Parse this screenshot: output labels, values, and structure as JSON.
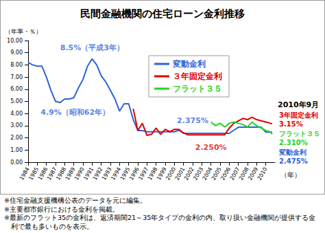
{
  "chart_data": {
    "type": "line",
    "title": "民間金融機関の住宅ローン金利推移",
    "ylabel": "（年率・％）",
    "xlabel": "（年）",
    "x": [
      1984,
      1984.5,
      1985,
      1985.5,
      1986,
      1986.5,
      1987,
      1987.5,
      1988,
      1988.5,
      1989,
      1989.5,
      1990,
      1990.5,
      1991,
      1991.5,
      1992,
      1992.5,
      1993,
      1993.5,
      1994,
      1994.5,
      1995,
      1995.5,
      1996,
      1996.5,
      1997,
      1997.5,
      1998,
      1998.5,
      1999,
      1999.5,
      2000,
      2000.5,
      2001,
      2001.5,
      2002,
      2002.5,
      2003,
      2003.5,
      2004,
      2004.5,
      2005,
      2005.5,
      2006,
      2006.5,
      2007,
      2007.5,
      2008,
      2008.5,
      2009,
      2009.5,
      2010,
      2010.5,
      2010.7
    ],
    "series": [
      {
        "name": "変動金利",
        "color": "#2e62d9",
        "values": [
          8.2,
          8.0,
          7.9,
          7.9,
          7.0,
          5.9,
          5.0,
          4.9,
          5.2,
          5.2,
          5.3,
          6.1,
          6.8,
          7.9,
          8.5,
          8.0,
          7.1,
          6.6,
          5.9,
          5.2,
          4.2,
          4.8,
          4.8,
          3.5,
          2.6,
          2.6,
          2.5,
          2.5,
          2.5,
          2.5,
          2.5,
          2.5,
          2.5,
          2.625,
          2.375,
          2.375,
          2.375,
          2.375,
          2.375,
          2.375,
          2.375,
          2.375,
          2.375,
          2.375,
          2.375,
          2.625,
          2.875,
          2.875,
          2.875,
          2.875,
          2.875,
          2.875,
          2.475,
          2.475,
          2.475
        ]
      },
      {
        "name": "３年固定金利",
        "color": "#e00000",
        "values": [
          null,
          null,
          null,
          null,
          null,
          null,
          null,
          null,
          null,
          null,
          null,
          null,
          null,
          null,
          null,
          null,
          null,
          null,
          null,
          null,
          null,
          null,
          null,
          4.4,
          2.6,
          3.2,
          2.2,
          2.3,
          2.8,
          2.3,
          2.7,
          2.5,
          2.7,
          2.7,
          2.4,
          2.25,
          2.25,
          2.25,
          2.25,
          2.25,
          2.25,
          2.25,
          2.25,
          2.25,
          2.8,
          3.2,
          3.4,
          3.6,
          3.5,
          3.7,
          3.5,
          3.4,
          3.3,
          3.2,
          3.15
        ]
      },
      {
        "name": "フラット３５",
        "color": "#22d422",
        "values": [
          null,
          null,
          null,
          null,
          null,
          null,
          null,
          null,
          null,
          null,
          null,
          null,
          null,
          null,
          null,
          null,
          null,
          null,
          null,
          null,
          null,
          null,
          null,
          null,
          null,
          null,
          null,
          null,
          null,
          null,
          null,
          null,
          null,
          null,
          null,
          null,
          null,
          null,
          null,
          null,
          3.3,
          3.0,
          3.2,
          2.9,
          3.2,
          3.3,
          3.2,
          3.1,
          2.9,
          3.3,
          3.0,
          2.8,
          2.6,
          2.5,
          2.31
        ]
      }
    ],
    "xlim": [
      1984,
      2011
    ],
    "xticks": [
      1984,
      1985,
      1986,
      1987,
      1988,
      1989,
      1990,
      1991,
      1992,
      1993,
      1994,
      1995,
      1996,
      1997,
      1998,
      1999,
      2000,
      2001,
      2002,
      2003,
      2004,
      2005,
      2006,
      2007,
      2008,
      2009,
      2010
    ],
    "ylim": [
      0,
      10
    ],
    "yticks": [
      {
        "value": 0,
        "label": "0.00"
      },
      {
        "value": 1,
        "label": "1.00"
      },
      {
        "value": 2,
        "label": "2.00"
      },
      {
        "value": 3,
        "label": "3.00"
      },
      {
        "value": 4,
        "label": "4.00"
      },
      {
        "value": 5,
        "label": "5.00"
      },
      {
        "value": 6,
        "label": "6.00"
      },
      {
        "value": 7,
        "label": "7.00"
      },
      {
        "value": 8,
        "label": "8.00"
      },
      {
        "value": 9,
        "label": "9.00"
      },
      {
        "value": 10,
        "label": "10.00"
      }
    ],
    "grid": false,
    "legend": "top",
    "annotations": [
      {
        "text": "8.5%（平成3年）",
        "x": 1991,
        "y": 8.5,
        "color": "#2e62d9"
      },
      {
        "text": "4.9%（昭和62年）",
        "x": 1987.5,
        "y": 4.9,
        "color": "#2e62d9"
      },
      {
        "text": "2.375%",
        "x": 2002,
        "y": 2.375,
        "color": "#2e62d9"
      },
      {
        "text": "2.250%",
        "x": 2004,
        "y": 2.25,
        "color": "#e00000"
      }
    ],
    "latest": {
      "title": "2010年9月",
      "items": [
        {
          "name": "3年固定金利",
          "label": "3.15%",
          "color": "#e00000"
        },
        {
          "name": "フラット３５",
          "label": "2.310%",
          "color": "#22d422"
        },
        {
          "name": "変動金利",
          "label": "2.475%",
          "color": "#2e62d9"
        }
      ]
    },
    "notes": [
      "※住宅金融支援機構公表のデータを元に編集。",
      "※主要都市銀行における金利を掲載。",
      "※最新のフラット35の金利は、返済期間21～35年タイプの金利の内、取り扱い金融機関が提供する金利で最も多いものを表示。"
    ]
  }
}
